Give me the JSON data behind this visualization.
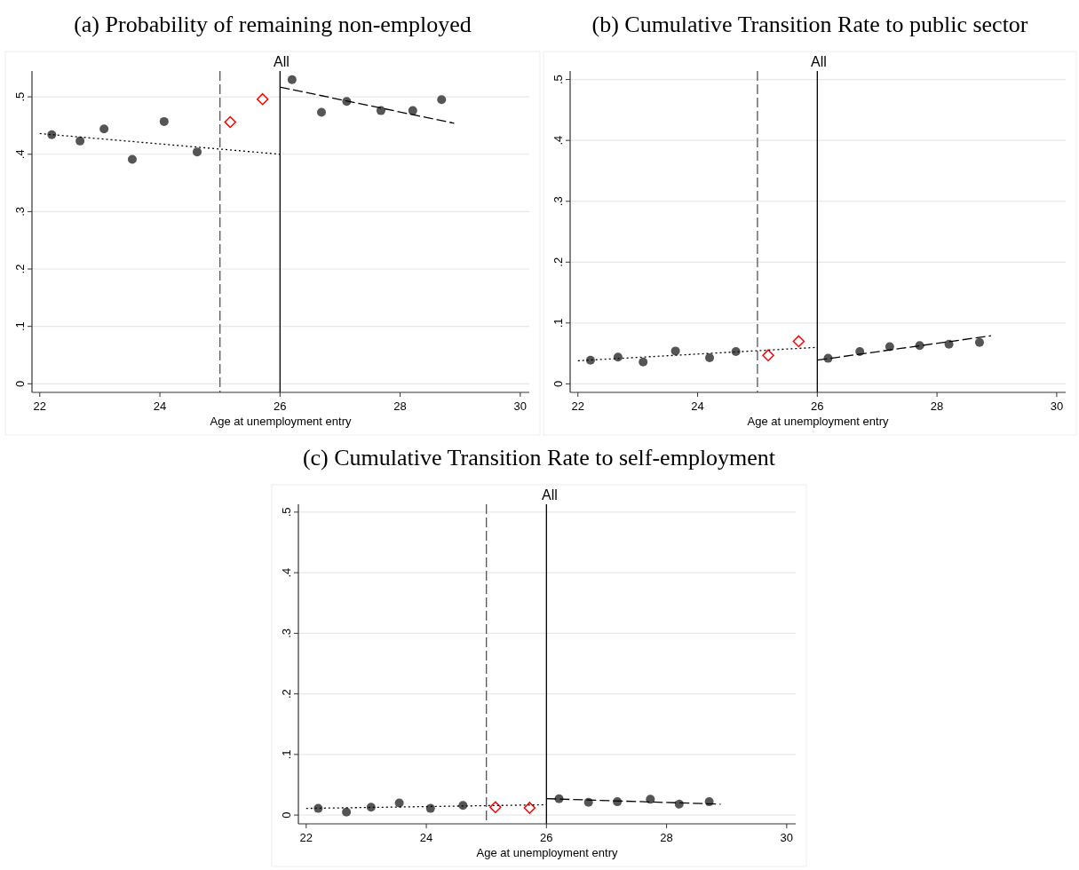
{
  "chart_data": [
    {
      "type": "scatter",
      "title": "(a) Probability of remaining non-employed",
      "subtitle": "All",
      "xlabel": "Age at unemployment entry",
      "xlim": [
        21.87,
        30.15
      ],
      "xticks": [
        22,
        24,
        26,
        28,
        30
      ],
      "ylim": [
        -0.015,
        0.545
      ],
      "yticks": [
        {
          "value": 0,
          "label": "0"
        },
        {
          "value": 0.1,
          "label": ".1"
        },
        {
          "value": 0.2,
          "label": ".2"
        },
        {
          "value": 0.3,
          "label": ".3"
        },
        {
          "value": 0.4,
          "label": ".4"
        },
        {
          "value": 0.5,
          "label": ".5"
        }
      ],
      "grid": "y",
      "ref_lines": [
        {
          "axis": "x",
          "value": 25,
          "line_style": "dashed",
          "color": "#555555"
        },
        {
          "axis": "x",
          "value": 26,
          "line_style": "solid",
          "color": "#000000"
        }
      ],
      "series": [
        {
          "type": "scatter",
          "marker": "circle",
          "color": "#555555",
          "x": [
            22.2,
            22.67,
            23.07,
            23.54,
            24.07,
            24.62,
            26.2,
            26.69,
            27.11,
            27.68,
            28.21,
            28.69
          ],
          "values": [
            0.434,
            0.423,
            0.444,
            0.391,
            0.457,
            0.404,
            0.53,
            0.473,
            0.492,
            0.476,
            0.476,
            0.495
          ]
        },
        {
          "type": "scatter",
          "marker": "diamond",
          "color": "#ff0000",
          "x": [
            25.17,
            25.71
          ],
          "values": [
            0.456,
            0.496
          ]
        },
        {
          "type": "line",
          "line_style": "dotted",
          "color": "#000000",
          "x": [
            22,
            26
          ],
          "values": [
            0.436,
            0.4
          ]
        },
        {
          "type": "line",
          "line_style": "dashed",
          "color": "#000000",
          "x": [
            26,
            28.9
          ],
          "values": [
            0.517,
            0.454
          ]
        }
      ]
    },
    {
      "type": "scatter",
      "title": "(b) Cumulative Transition Rate to public sector",
      "subtitle": "All",
      "xlabel": "Age at unemployment entry",
      "xlim": [
        21.87,
        30.15
      ],
      "xticks": [
        22,
        24,
        26,
        28,
        30
      ],
      "ylim": [
        -0.014,
        0.514
      ],
      "yticks": [
        {
          "value": 0,
          "label": "0"
        },
        {
          "value": 0.1,
          "label": ".1"
        },
        {
          "value": 0.2,
          "label": ".2"
        },
        {
          "value": 0.3,
          "label": ".3"
        },
        {
          "value": 0.4,
          "label": ".4"
        },
        {
          "value": 0.5,
          "label": ".5"
        }
      ],
      "grid": "y",
      "ref_lines": [
        {
          "axis": "x",
          "value": 25,
          "line_style": "dashed",
          "color": "#555555"
        },
        {
          "axis": "x",
          "value": 26,
          "line_style": "solid",
          "color": "#000000"
        }
      ],
      "series": [
        {
          "type": "scatter",
          "marker": "circle",
          "color": "#555555",
          "x": [
            22.21,
            22.67,
            23.09,
            23.63,
            24.2,
            24.64,
            26.18,
            26.71,
            27.21,
            27.71,
            28.2,
            28.71
          ],
          "values": [
            0.039,
            0.044,
            0.036,
            0.054,
            0.043,
            0.053,
            0.042,
            0.053,
            0.061,
            0.063,
            0.065,
            0.068
          ]
        },
        {
          "type": "scatter",
          "marker": "diamond",
          "color": "#ff0000",
          "x": [
            25.18,
            25.69
          ],
          "values": [
            0.047,
            0.07
          ]
        },
        {
          "type": "line",
          "line_style": "dotted",
          "color": "#000000",
          "x": [
            22,
            26
          ],
          "values": [
            0.038,
            0.06
          ]
        },
        {
          "type": "line",
          "line_style": "dashed",
          "color": "#000000",
          "x": [
            26,
            28.9
          ],
          "values": [
            0.039,
            0.079
          ]
        }
      ]
    },
    {
      "type": "scatter",
      "title": "(c) Cumulative Transition Rate to self-employment",
      "subtitle": "All",
      "xlabel": "Age at unemployment entry",
      "xlim": [
        21.87,
        30.15
      ],
      "xticks": [
        22,
        24,
        26,
        28,
        30
      ],
      "ylim": [
        -0.0145,
        0.513
      ],
      "yticks": [
        {
          "value": 0,
          "label": "0"
        },
        {
          "value": 0.1,
          "label": ".1"
        },
        {
          "value": 0.2,
          "label": ".2"
        },
        {
          "value": 0.3,
          "label": ".3"
        },
        {
          "value": 0.4,
          "label": ".4"
        },
        {
          "value": 0.5,
          "label": ".5"
        }
      ],
      "grid": "y",
      "ref_lines": [
        {
          "axis": "x",
          "value": 25,
          "line_style": "dashed",
          "color": "#555555"
        },
        {
          "axis": "x",
          "value": 26,
          "line_style": "solid",
          "color": "#000000"
        }
      ],
      "series": [
        {
          "type": "scatter",
          "marker": "circle",
          "color": "#555555",
          "x": [
            22.2,
            22.67,
            23.08,
            23.55,
            24.07,
            24.61,
            26.21,
            26.7,
            27.18,
            27.73,
            28.21,
            28.71
          ],
          "values": [
            0.011,
            0.005,
            0.013,
            0.02,
            0.011,
            0.016,
            0.027,
            0.021,
            0.022,
            0.026,
            0.018,
            0.022
          ]
        },
        {
          "type": "scatter",
          "marker": "diamond",
          "color": "#ff0000",
          "x": [
            25.15,
            25.72
          ],
          "values": [
            0.013,
            0.012
          ]
        },
        {
          "type": "line",
          "line_style": "dotted",
          "color": "#000000",
          "x": [
            22,
            26
          ],
          "values": [
            0.011,
            0.017
          ]
        },
        {
          "type": "line",
          "line_style": "dashed",
          "color": "#000000",
          "x": [
            26,
            28.9
          ],
          "values": [
            0.027,
            0.018
          ]
        }
      ]
    }
  ]
}
